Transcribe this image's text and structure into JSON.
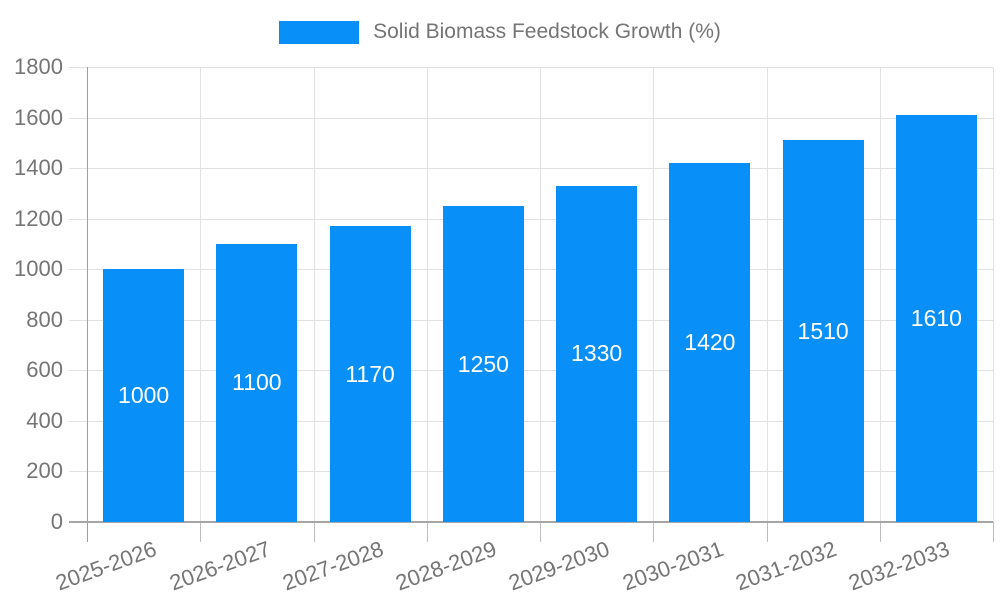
{
  "legend": {
    "label": "Solid Biomass Feedstock Growth (%)"
  },
  "chart_data": {
    "type": "bar",
    "title": "Solid Biomass Feedstock Growth (%)",
    "series": [
      {
        "name": "Solid Biomass Feedstock Growth (%)",
        "values": [
          1000,
          1100,
          1170,
          1250,
          1330,
          1420,
          1510,
          1610
        ]
      }
    ],
    "categories": [
      "2025-2026",
      "2026-2027",
      "2027-2028",
      "2028-2029",
      "2029-2030",
      "2030-2031",
      "2031-2032",
      "2032-2033"
    ],
    "value_labels": [
      "1000",
      "1100",
      "1170",
      "1250",
      "1330",
      "1420",
      "1510",
      "1610"
    ],
    "xlabel": "",
    "ylabel": "",
    "ylim": [
      0,
      1800
    ],
    "ytick_step": 200,
    "yticks": [
      0,
      200,
      400,
      600,
      800,
      1000,
      1200,
      1400,
      1600,
      1800
    ],
    "grid": true,
    "legend_position": "top"
  },
  "colors": {
    "bar": "#0990f8",
    "value_label": "#ffffff",
    "axis_text": "#757575",
    "grid_line": "#e2e2e2",
    "axis_line": "#a6a6a6",
    "background": "#ffffff"
  }
}
